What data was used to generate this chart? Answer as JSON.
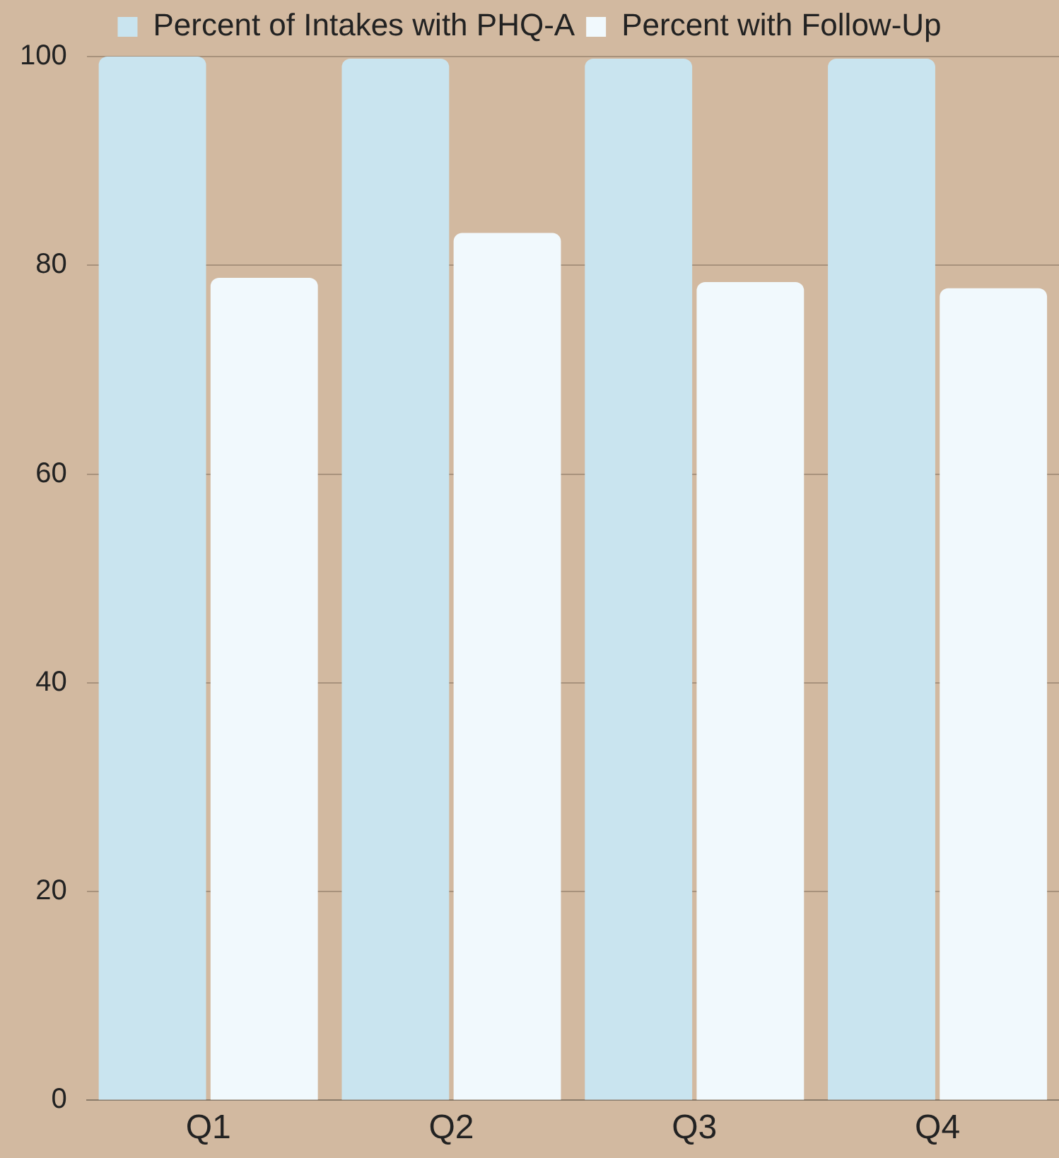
{
  "chart_data": {
    "type": "bar",
    "categories": [
      "Q1",
      "Q2",
      "Q3",
      "Q4"
    ],
    "series": [
      {
        "name": "Percent of Intakes with PHQ-A",
        "color": "#c9e4ef",
        "values": [
          100,
          99.8,
          99.8,
          99.8
        ]
      },
      {
        "name": "Percent with Follow-Up",
        "color": "#f1f9fd",
        "values": [
          78.8,
          83.1,
          78.4,
          77.8
        ]
      }
    ],
    "ylim": [
      0,
      100
    ],
    "yticks": [
      0,
      20,
      40,
      60,
      80,
      100
    ],
    "grid": "y",
    "legend": "top"
  }
}
